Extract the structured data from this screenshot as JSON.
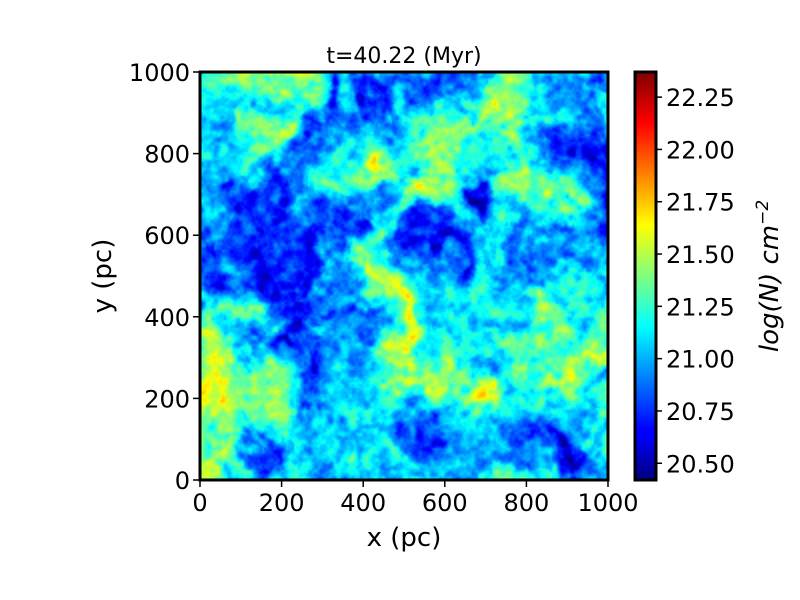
{
  "chart_data": {
    "type": "heatmap",
    "title": "t=40.22 (Myr)",
    "xlabel": "x (pc)",
    "ylabel": "y (pc)",
    "xlim": [
      0,
      1000
    ],
    "ylim": [
      0,
      1000
    ],
    "x_ticks": [
      0,
      200,
      400,
      600,
      800,
      1000
    ],
    "y_ticks": [
      0,
      200,
      400,
      600,
      800,
      1000
    ],
    "x_tick_labels": [
      "0",
      "200",
      "400",
      "600",
      "800",
      "1000"
    ],
    "y_tick_labels": [
      "0",
      "200",
      "400",
      "600",
      "800",
      "1000"
    ],
    "colormap": "jet",
    "colorbar": {
      "label_base": "log(N) cm",
      "label_exponent": "−2",
      "range": [
        20.42,
        22.37
      ],
      "ticks": [
        20.5,
        20.75,
        21.0,
        21.25,
        21.5,
        21.75,
        22.0,
        22.25
      ],
      "tick_labels": [
        "20.50",
        "20.75",
        "21.00",
        "21.25",
        "21.50",
        "21.75",
        "22.00",
        "22.25"
      ]
    },
    "field_mean": 21.15,
    "grid": false
  }
}
